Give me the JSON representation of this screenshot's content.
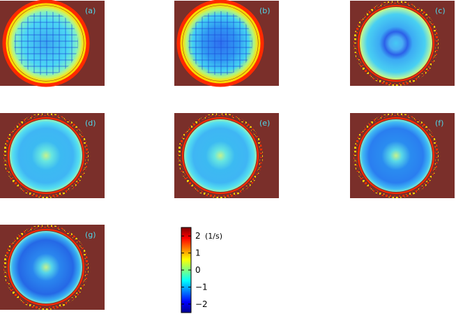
{
  "chart_data": {
    "type": "heatmap",
    "panels": [
      {
        "label": "(a)",
        "style": "grid"
      },
      {
        "label": "(b)",
        "style": "grid-deep"
      },
      {
        "label": "(c)",
        "style": "ring"
      },
      {
        "label": "(d)",
        "style": "center-hot"
      },
      {
        "label": "(e)",
        "style": "center-hot"
      },
      {
        "label": "(f)",
        "style": "center-hot-deep"
      },
      {
        "label": "(g)",
        "style": "center-hot-deeper"
      }
    ],
    "colorbar": {
      "ticks": [
        "2",
        "1",
        "0",
        "−1",
        "−2"
      ],
      "tick_values": [
        2,
        1,
        0,
        -1,
        -2
      ],
      "unit": "(1/s)",
      "range": [
        -2.5,
        2.5
      ],
      "colormap": "jet"
    },
    "colors": {
      "background": "#7a2f2a",
      "rim_hot": "#ff2a00",
      "rim_warm": "#ffd800"
    }
  }
}
